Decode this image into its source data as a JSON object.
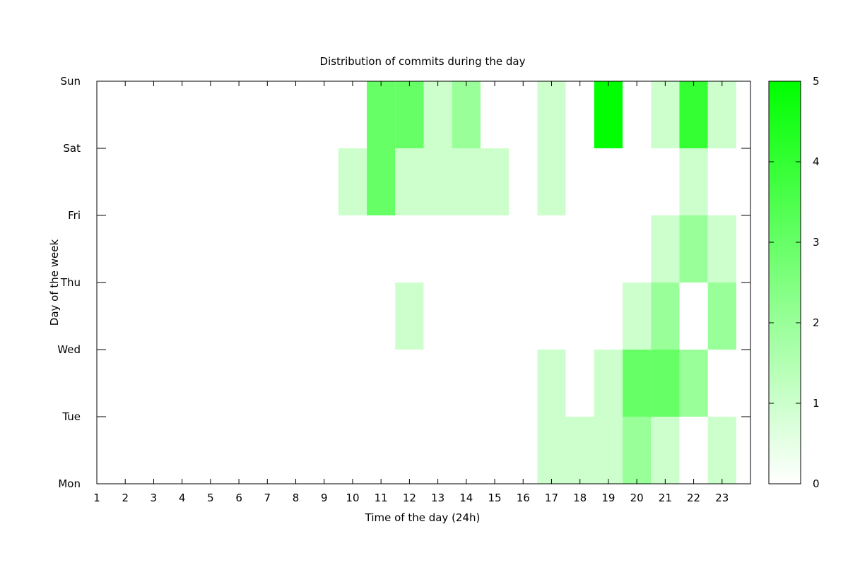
{
  "chart_data": {
    "type": "heatmap",
    "title": "Distribution of commits during the day",
    "xlabel": "Time of the day (24h)",
    "ylabel": "Day of the week",
    "x_ticks": [
      "1",
      "2",
      "3",
      "4",
      "5",
      "6",
      "7",
      "8",
      "9",
      "10",
      "11",
      "12",
      "13",
      "14",
      "15",
      "16",
      "17",
      "18",
      "19",
      "20",
      "21",
      "22",
      "23"
    ],
    "y_ticks": [
      "Mon",
      "Tue",
      "Wed",
      "Thu",
      "Fri",
      "Sat",
      "Sun"
    ],
    "color_scale": {
      "min": 0,
      "max": 5,
      "min_color": "#ffffff",
      "max_color": "#00ff00",
      "ticks": [
        "0",
        "1",
        "2",
        "3",
        "4",
        "5"
      ]
    },
    "cells": [
      {
        "x": 17,
        "y": 0.5,
        "value": 1
      },
      {
        "x": 18,
        "y": 0.5,
        "value": 1
      },
      {
        "x": 19,
        "y": 0.5,
        "value": 1
      },
      {
        "x": 20,
        "y": 0.5,
        "value": 2
      },
      {
        "x": 21,
        "y": 0.5,
        "value": 1
      },
      {
        "x": 23,
        "y": 0.5,
        "value": 1
      },
      {
        "x": 17,
        "y": 1.5,
        "value": 1
      },
      {
        "x": 19,
        "y": 1.5,
        "value": 1
      },
      {
        "x": 20,
        "y": 1.5,
        "value": 3
      },
      {
        "x": 21,
        "y": 1.5,
        "value": 3
      },
      {
        "x": 22,
        "y": 1.5,
        "value": 2
      },
      {
        "x": 12,
        "y": 2.5,
        "value": 1
      },
      {
        "x": 20,
        "y": 2.5,
        "value": 1
      },
      {
        "x": 21,
        "y": 2.5,
        "value": 2
      },
      {
        "x": 23,
        "y": 2.5,
        "value": 2
      },
      {
        "x": 21,
        "y": 3.5,
        "value": 1
      },
      {
        "x": 22,
        "y": 3.5,
        "value": 2
      },
      {
        "x": 23,
        "y": 3.5,
        "value": 1
      },
      {
        "x": 10,
        "y": 4.5,
        "value": 1
      },
      {
        "x": 11,
        "y": 4.5,
        "value": 3
      },
      {
        "x": 12,
        "y": 4.5,
        "value": 1
      },
      {
        "x": 13,
        "y": 4.5,
        "value": 1
      },
      {
        "x": 14,
        "y": 4.5,
        "value": 1
      },
      {
        "x": 15,
        "y": 4.5,
        "value": 1
      },
      {
        "x": 17,
        "y": 4.5,
        "value": 1
      },
      {
        "x": 22,
        "y": 4.5,
        "value": 1
      },
      {
        "x": 11,
        "y": 5.5,
        "value": 3
      },
      {
        "x": 12,
        "y": 5.5,
        "value": 3
      },
      {
        "x": 13,
        "y": 5.5,
        "value": 1
      },
      {
        "x": 14,
        "y": 5.5,
        "value": 2
      },
      {
        "x": 17,
        "y": 5.5,
        "value": 1
      },
      {
        "x": 19,
        "y": 5.5,
        "value": 5
      },
      {
        "x": 21,
        "y": 5.5,
        "value": 1
      },
      {
        "x": 22,
        "y": 5.5,
        "value": 4
      },
      {
        "x": 23,
        "y": 5.5,
        "value": 1
      }
    ],
    "x_range": [
      1,
      24
    ],
    "y_range": [
      0,
      6
    ],
    "grid": false,
    "legend": "right colorbox"
  }
}
